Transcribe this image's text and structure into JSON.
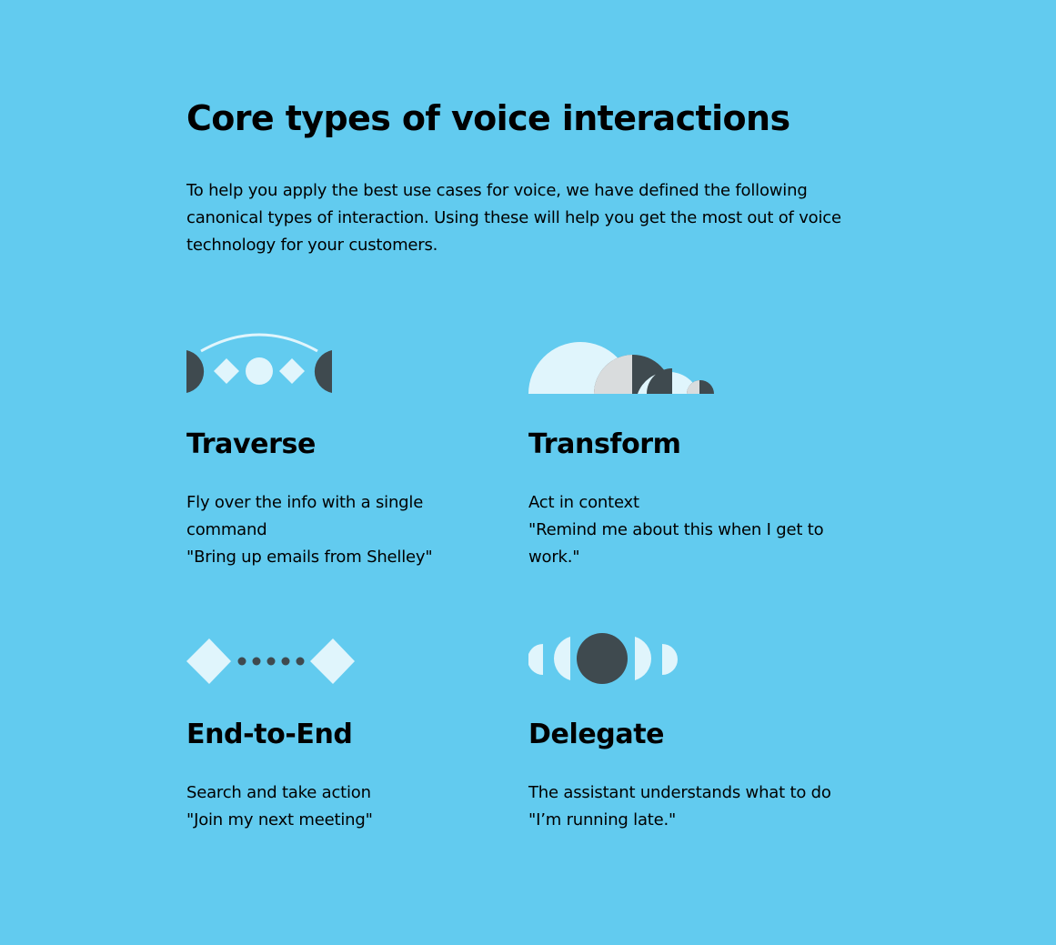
{
  "header": {
    "title": "Core types of voice interactions",
    "intro": "To help you apply the best use cases for voice, we have defined the following canonical types of interaction. Using these will help you get the most out of voice technology for your customers."
  },
  "colors": {
    "background": "#62cbef",
    "icon_light": "#e0f5fc",
    "icon_dark": "#3f4a4f",
    "icon_mid": "#d9dcdd"
  },
  "cards": [
    {
      "icon": "traverse-icon",
      "title": "Traverse",
      "line1": "Fly over the info with a single command",
      "line2": "\"Bring up emails from Shelley\""
    },
    {
      "icon": "transform-icon",
      "title": "Transform",
      "line1": "Act in context",
      "line2": "\"Remind me about this when I get to work.\""
    },
    {
      "icon": "end-to-end-icon",
      "title": "End-to-End",
      "line1": "Search and take action",
      "line2": "\"Join my next meeting\""
    },
    {
      "icon": "delegate-icon",
      "title": "Delegate",
      "line1": "The assistant understands what to do",
      "line2": "\"I’m running late.\""
    }
  ]
}
